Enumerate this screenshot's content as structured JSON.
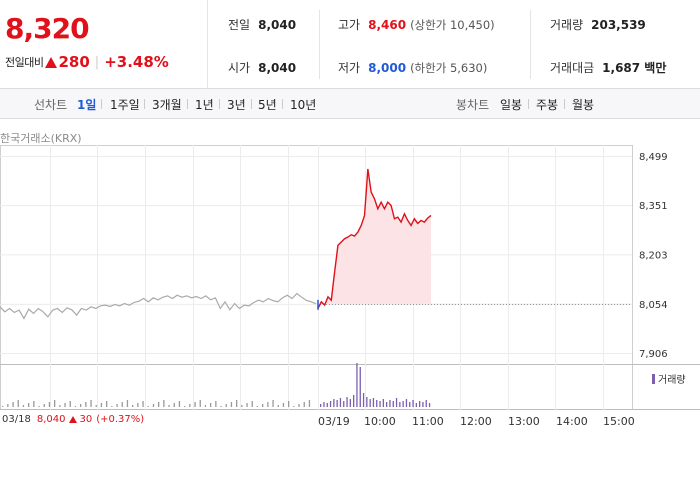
{
  "summary": {
    "price": "8,320",
    "change_label": "전일대비",
    "change_value": "280",
    "change_pct": "+3.48%"
  },
  "stats": {
    "prev_close": {
      "label": "전일",
      "value": "8,040"
    },
    "open": {
      "label": "시가",
      "value": "8,040"
    },
    "high": {
      "label": "고가",
      "value": "8,460",
      "sub": "(상한가 10,450)"
    },
    "low": {
      "label": "저가",
      "value": "8,000",
      "sub": "(하한가 5,630)"
    },
    "volume": {
      "label": "거래량",
      "value": "203,539"
    },
    "amount": {
      "label": "거래대금",
      "value": "1,687 백만"
    }
  },
  "tabs": {
    "line_title": "선차트",
    "line_tabs": [
      "1일",
      "1주일",
      "3개월",
      "1년",
      "3년",
      "5년",
      "10년"
    ],
    "active": "1일",
    "candle_title": "봉차트",
    "candle_tabs": [
      "일봉",
      "주봉",
      "월봉"
    ]
  },
  "exchange": "한국거래소(KRX)",
  "volume_legend": "거래량",
  "prev_day_info": {
    "date": "03/18",
    "price": "8,040",
    "change": "30",
    "pct": "(+0.37%)"
  },
  "colors": {
    "up": "#e0111a",
    "down": "#1f5bd7",
    "volume": "#7c5fb0",
    "prev_line": "#aaaaaa"
  },
  "chart_data": {
    "type": "line",
    "y_ticks": [
      "8,499",
      "8,351",
      "8,203",
      "8,054",
      "7,906"
    ],
    "ylim": [
      7906,
      8499
    ],
    "x_ticks": [
      "03/19",
      "10:00",
      "11:00",
      "12:00",
      "13:00",
      "14:00",
      "15:00"
    ],
    "reference_price": 8054,
    "series": [
      {
        "name": "03/18",
        "values": [
          8045,
          8030,
          8040,
          8028,
          8035,
          8010,
          8038,
          8025,
          8040,
          8030,
          8015,
          8035,
          8040,
          8028,
          8042,
          8036,
          8020,
          8040,
          8035,
          8045,
          8040,
          8048,
          8050,
          8046,
          8052,
          8048,
          8055,
          8050,
          8058,
          8062,
          8070,
          8060,
          8072,
          8066,
          8074,
          8078,
          8070,
          8080,
          8074,
          8078,
          8072,
          8076,
          8070,
          8078,
          8066,
          8072,
          8040,
          8060,
          8036,
          8055,
          8040,
          8050,
          8048,
          8058,
          8065,
          8060,
          8070,
          8064,
          8060,
          8072,
          8080,
          8070,
          8085,
          8074,
          8064,
          8060,
          8054
        ]
      },
      {
        "name": "03/19",
        "values": [
          8040,
          8060,
          8050,
          8075,
          8065,
          8150,
          8230,
          8240,
          8250,
          8255,
          8262,
          8258,
          8270,
          8290,
          8320,
          8460,
          8390,
          8370,
          8340,
          8360,
          8340,
          8360,
          8350,
          8310,
          8315,
          8300,
          8325,
          8305,
          8290,
          8310,
          8296,
          8305,
          8300,
          8312,
          8320
        ]
      }
    ]
  }
}
